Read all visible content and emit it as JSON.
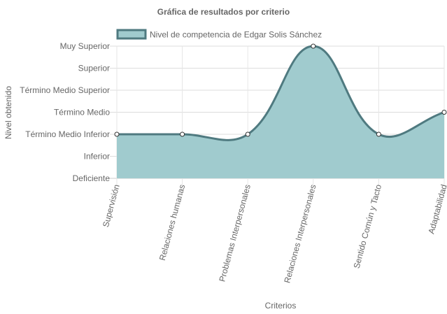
{
  "chart_data": {
    "type": "area",
    "title": "Gráfica de resultados por criterio",
    "xlabel": "Criterios",
    "ylabel": "Nivel obtenido",
    "categories": [
      "Supervisión",
      "Relaciones humanas",
      "Problemas Interpersonales",
      "Relaciones Interpersonales",
      "Sentido Común y Tacto",
      "Adaptabilidad"
    ],
    "y_levels": [
      "Deficiente",
      "Inferior",
      "Término Medio Inferior",
      "Término Medio",
      "Término Medio Superior",
      "Superior",
      "Muy Superior"
    ],
    "series": [
      {
        "name": "Nivel de competencia de Edgar Solis Sánchez",
        "values": [
          2,
          2,
          2,
          6,
          2,
          3
        ],
        "fill": "#a0cbce",
        "stroke": "#4f7a80"
      }
    ],
    "ylim": [
      0,
      6
    ],
    "grid": true,
    "legend_position": "top"
  }
}
